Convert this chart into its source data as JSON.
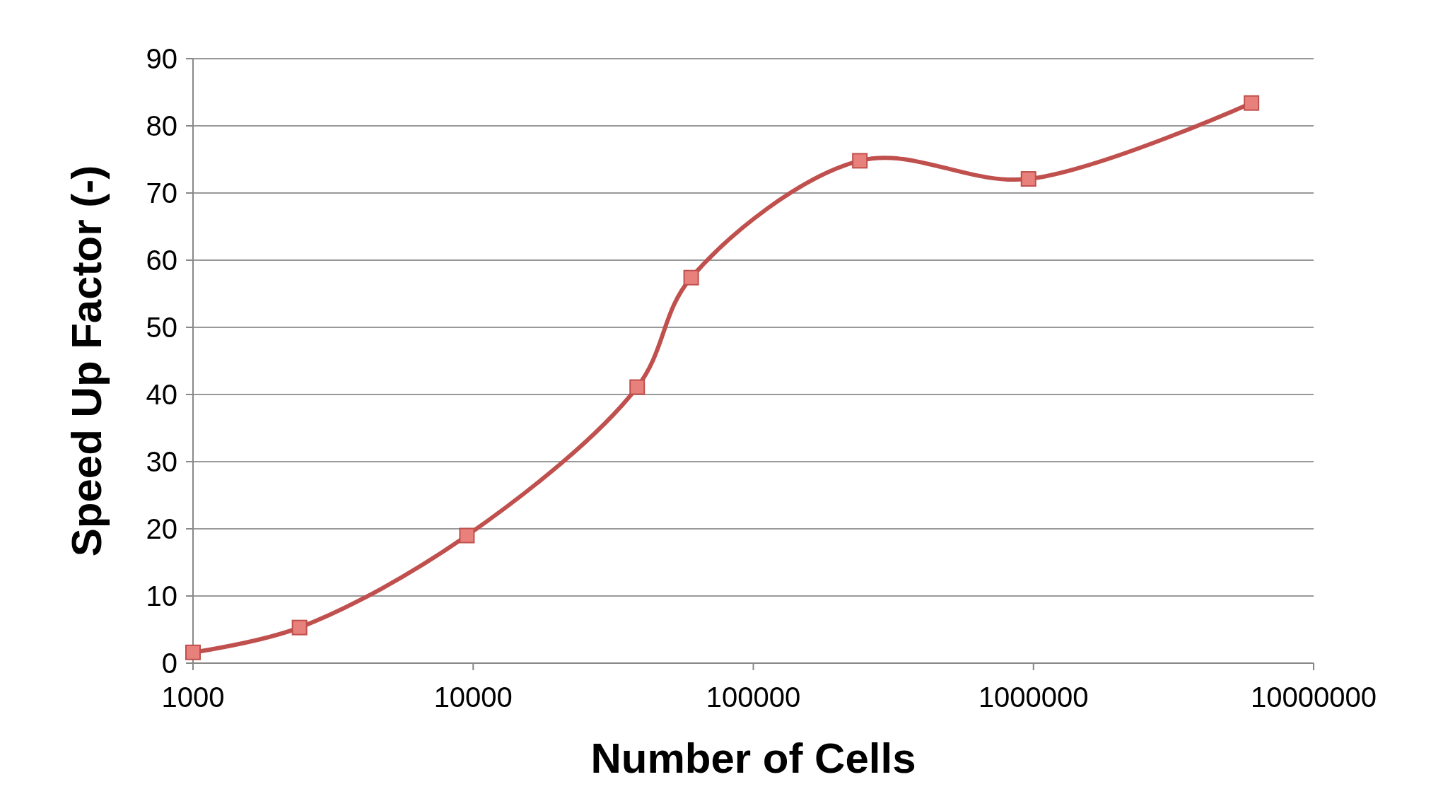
{
  "chart_data": {
    "type": "line",
    "xlabel": "Number of Cells",
    "ylabel": "Speed Up Factor (-)",
    "log": "x",
    "x": [
      1000,
      2400,
      9500,
      38500,
      60000,
      240000,
      960000,
      6000000
    ],
    "series": [
      {
        "color": "#c0504d",
        "values": [
          1.6,
          5.3,
          19.0,
          41.1,
          57.4,
          74.8,
          72.1,
          83.4
        ]
      }
    ],
    "xlim": [
      1000,
      10000000
    ],
    "xticks": [
      1000,
      10000,
      100000,
      1000000,
      10000000
    ],
    "ylim": [
      0,
      90
    ],
    "yticks": [
      0,
      10,
      20,
      30,
      40,
      50,
      60,
      70,
      80,
      90
    ],
    "grid": "y",
    "marker": "square",
    "line_style": "solid"
  }
}
